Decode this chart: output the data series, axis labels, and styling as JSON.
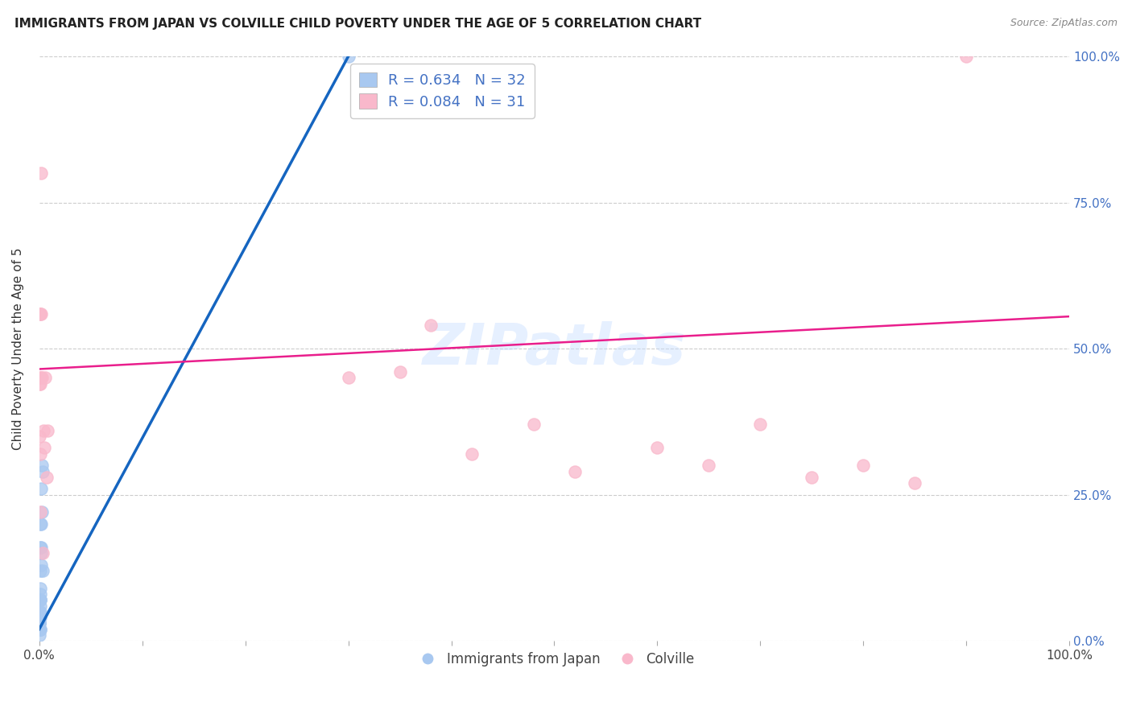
{
  "title": "IMMIGRANTS FROM JAPAN VS COLVILLE CHILD POVERTY UNDER THE AGE OF 5 CORRELATION CHART",
  "source": "Source: ZipAtlas.com",
  "ylabel": "Child Poverty Under the Age of 5",
  "legend_blue_r": "0.634",
  "legend_blue_n": "32",
  "legend_pink_r": "0.084",
  "legend_pink_n": "31",
  "watermark": "ZIPatlas",
  "blue_scatter_x": [
    0.0002,
    0.0003,
    0.0003,
    0.0004,
    0.0004,
    0.0005,
    0.0005,
    0.0005,
    0.0005,
    0.0006,
    0.0006,
    0.0007,
    0.0007,
    0.0008,
    0.0008,
    0.0009,
    0.0009,
    0.001,
    0.001,
    0.0011,
    0.0012,
    0.0013,
    0.0014,
    0.0015,
    0.0017,
    0.0018,
    0.002,
    0.0022,
    0.0025,
    0.003,
    0.0035,
    0.3
  ],
  "blue_scatter_y": [
    0.03,
    0.02,
    0.04,
    0.03,
    0.05,
    0.01,
    0.02,
    0.03,
    0.04,
    0.02,
    0.05,
    0.04,
    0.07,
    0.02,
    0.06,
    0.07,
    0.12,
    0.08,
    0.16,
    0.2,
    0.07,
    0.09,
    0.16,
    0.13,
    0.2,
    0.15,
    0.26,
    0.3,
    0.22,
    0.29,
    0.12,
    1.0
  ],
  "pink_scatter_x": [
    0.0003,
    0.0004,
    0.0005,
    0.0006,
    0.0007,
    0.0008,
    0.001,
    0.0012,
    0.0014,
    0.0016,
    0.002,
    0.0025,
    0.003,
    0.004,
    0.005,
    0.006,
    0.007,
    0.008,
    0.3,
    0.35,
    0.38,
    0.42,
    0.48,
    0.52,
    0.6,
    0.65,
    0.7,
    0.75,
    0.8,
    0.85,
    0.9
  ],
  "pink_scatter_y": [
    0.44,
    0.35,
    0.56,
    0.45,
    0.56,
    0.22,
    0.44,
    0.32,
    0.8,
    0.56,
    0.45,
    0.45,
    0.15,
    0.36,
    0.33,
    0.45,
    0.28,
    0.36,
    0.45,
    0.46,
    0.54,
    0.32,
    0.37,
    0.29,
    0.33,
    0.3,
    0.37,
    0.28,
    0.3,
    0.27,
    1.0
  ],
  "blue_line_x": [
    0.0,
    0.3
  ],
  "blue_line_y": [
    0.02,
    1.0
  ],
  "pink_line_x": [
    0.0,
    1.0
  ],
  "pink_line_y": [
    0.465,
    0.555
  ],
  "blue_scatter_color": "#A8C8F0",
  "pink_scatter_color": "#F9B8CB",
  "blue_line_color": "#1565C0",
  "pink_line_color": "#E91E8C",
  "right_tick_color": "#4472C4",
  "xlim": [
    0.0,
    1.0
  ],
  "ylim": [
    0.0,
    1.0
  ],
  "ytick_labels": [
    "0.0%",
    "25.0%",
    "50.0%",
    "75.0%",
    "100.0%"
  ],
  "ytick_vals": [
    0.0,
    0.25,
    0.5,
    0.75,
    1.0
  ],
  "background_color": "#FFFFFF"
}
